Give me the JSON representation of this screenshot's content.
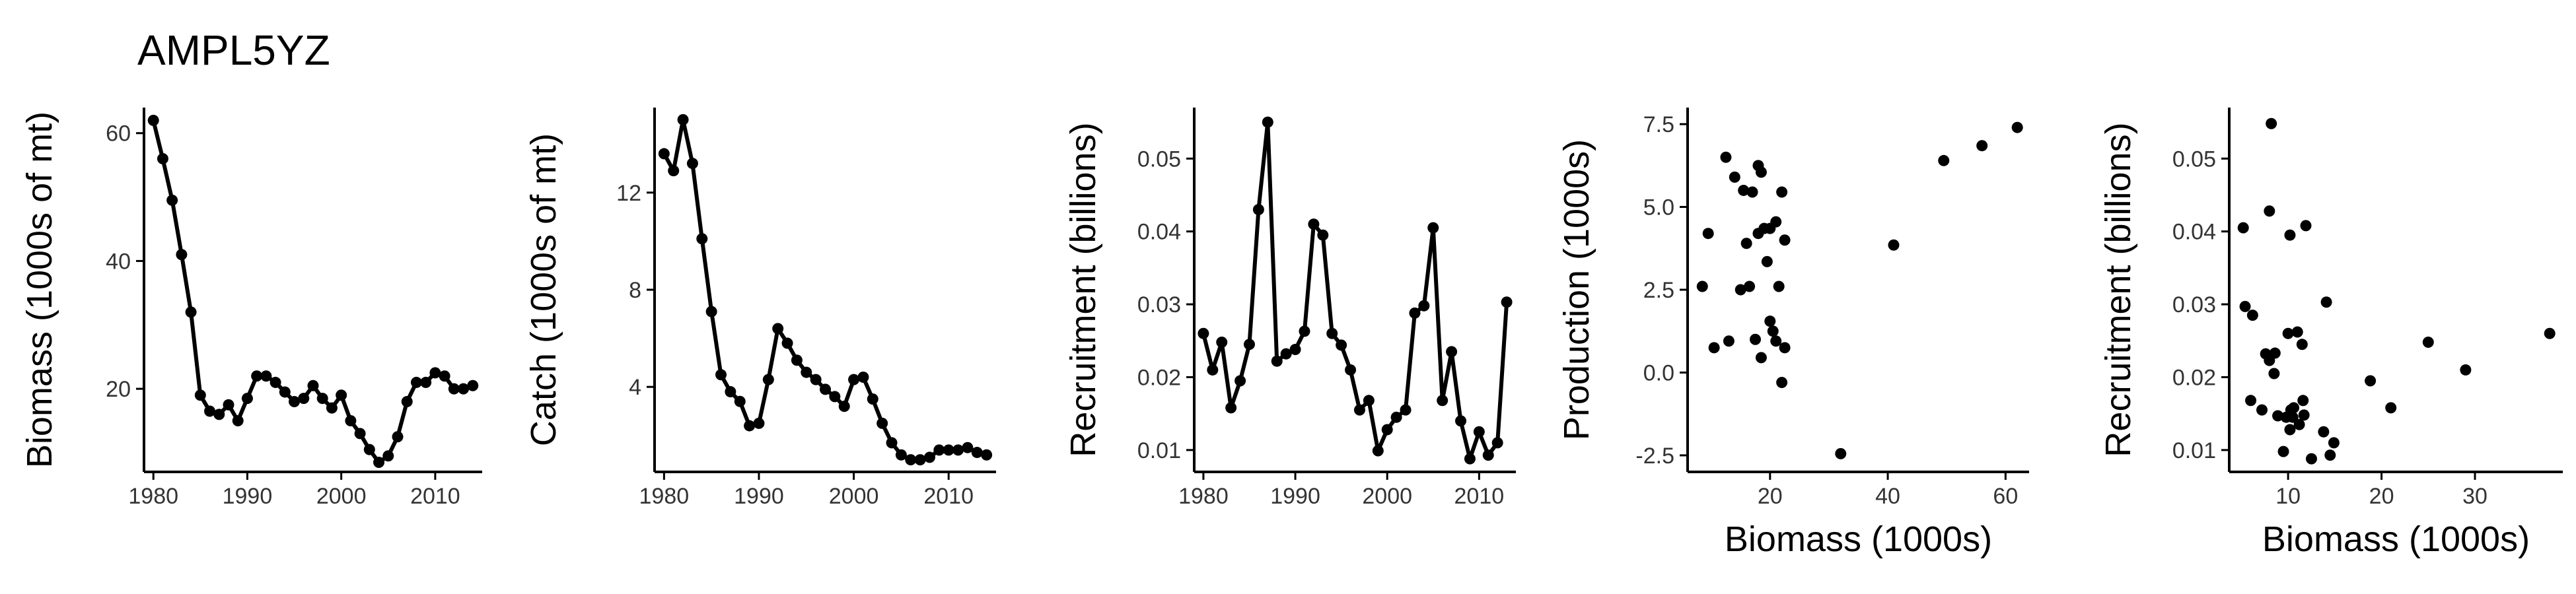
{
  "title": "AMPL5YZ",
  "colors": {
    "ink": "#000000",
    "tick_text": "#333333",
    "background": "#ffffff"
  },
  "chart_data": [
    {
      "type": "line",
      "xlabel": "",
      "ylabel": "Biomass (1000s of mt)",
      "xlim": [
        1979,
        2015
      ],
      "ylim": [
        7,
        64
      ],
      "xticks": [
        1980,
        1990,
        2000,
        2010
      ],
      "yticks": [
        20,
        40,
        60
      ],
      "grid": false,
      "x": [
        1980,
        1981,
        1982,
        1983,
        1984,
        1985,
        1986,
        1987,
        1988,
        1989,
        1990,
        1991,
        1992,
        1993,
        1994,
        1995,
        1996,
        1997,
        1998,
        1999,
        2000,
        2001,
        2002,
        2003,
        2004,
        2005,
        2006,
        2007,
        2008,
        2009,
        2010,
        2011,
        2012,
        2013,
        2014
      ],
      "y": [
        62,
        56,
        49.5,
        41,
        32,
        19,
        16.5,
        16,
        17.5,
        15,
        18.5,
        22,
        22,
        21,
        19.5,
        18,
        18.5,
        20.5,
        18.5,
        17,
        19,
        15,
        13,
        10.5,
        8.5,
        9.5,
        12.5,
        18,
        21,
        21,
        22.5,
        22,
        20,
        20,
        20.5
      ]
    },
    {
      "type": "line",
      "xlabel": "",
      "ylabel": "Catch (1000s of mt)",
      "xlim": [
        1979,
        2015
      ],
      "ylim": [
        0.5,
        15.5
      ],
      "xticks": [
        1980,
        1990,
        2000,
        2010
      ],
      "yticks": [
        4,
        8,
        12
      ],
      "grid": false,
      "x": [
        1980,
        1981,
        1982,
        1983,
        1984,
        1985,
        1986,
        1987,
        1988,
        1989,
        1990,
        1991,
        1992,
        1993,
        1994,
        1995,
        1996,
        1997,
        1998,
        1999,
        2000,
        2001,
        2002,
        2003,
        2004,
        2005,
        2006,
        2007,
        2008,
        2009,
        2010,
        2011,
        2012,
        2013,
        2014
      ],
      "y": [
        13.6,
        12.9,
        15,
        13.2,
        10.1,
        7.1,
        4.5,
        3.8,
        3.4,
        2.4,
        2.5,
        4.3,
        6.4,
        5.8,
        5.1,
        4.6,
        4.3,
        3.9,
        3.6,
        3.2,
        4.3,
        4.4,
        3.5,
        2.5,
        1.7,
        1.2,
        1,
        1,
        1.1,
        1.4,
        1.4,
        1.4,
        1.5,
        1.3,
        1.2
      ]
    },
    {
      "type": "line",
      "xlabel": "",
      "ylabel": "Recruitment (billions)",
      "xlim": [
        1979,
        2014
      ],
      "ylim": [
        0.007,
        0.057
      ],
      "xticks": [
        1980,
        1990,
        2000,
        2010
      ],
      "yticks": [
        0.01,
        0.02,
        0.03,
        0.04,
        0.05
      ],
      "grid": false,
      "x": [
        1980,
        1981,
        1982,
        1983,
        1984,
        1985,
        1986,
        1987,
        1988,
        1989,
        1990,
        1991,
        1992,
        1993,
        1994,
        1995,
        1996,
        1997,
        1998,
        1999,
        2000,
        2001,
        2002,
        2003,
        2004,
        2005,
        2006,
        2007,
        2008,
        2009,
        2010,
        2011,
        2012,
        2013
      ],
      "y": [
        0.026,
        0.021,
        0.0248,
        0.0158,
        0.0195,
        0.0245,
        0.043,
        0.055,
        0.0222,
        0.0232,
        0.0238,
        0.0263,
        0.041,
        0.0395,
        0.026,
        0.0244,
        0.021,
        0.0155,
        0.0168,
        0.0099,
        0.0128,
        0.0145,
        0.0155,
        0.0288,
        0.0298,
        0.0405,
        0.0168,
        0.0235,
        0.014,
        0.0088,
        0.0125,
        0.0093,
        0.011,
        0.0303
      ]
    },
    {
      "type": "scatter",
      "xlabel": "Biomass (1000s)",
      "ylabel": "Production (1000s)",
      "xlim": [
        6,
        64
      ],
      "ylim": [
        -3,
        8
      ],
      "xticks": [
        20,
        40,
        60
      ],
      "yticks": [
        -2.5,
        0.0,
        2.5,
        5.0,
        7.5
      ],
      "ytick_labels": [
        "-2.5",
        "0.0",
        "2.5",
        "5.0",
        "7.5"
      ],
      "grid": false,
      "x": [
        8.5,
        9.5,
        10.5,
        12.5,
        13,
        14,
        15,
        15.5,
        16,
        16.5,
        17,
        17.5,
        18,
        18,
        18.5,
        18.5,
        19,
        19.5,
        20,
        20,
        20.5,
        21,
        21,
        21.5,
        22,
        22,
        22.5,
        22.5,
        32,
        41,
        49.5,
        56,
        62
      ],
      "y": [
        2.6,
        4.2,
        0.75,
        6.5,
        0.95,
        5.9,
        2.5,
        5.5,
        3.9,
        2.6,
        5.45,
        1.0,
        4.2,
        6.25,
        0.45,
        6.05,
        4.35,
        3.35,
        1.55,
        4.35,
        1.25,
        4.55,
        0.95,
        2.6,
        5.45,
        -0.3,
        4.0,
        0.75,
        -2.45,
        3.85,
        6.4,
        6.85,
        7.4
      ]
    },
    {
      "type": "scatter",
      "xlabel": "Biomass (1000s)",
      "ylabel": "Recruitment (billions)",
      "xlim": [
        3.7,
        39.4
      ],
      "ylim": [
        0.007,
        0.057
      ],
      "xticks": [
        10,
        20,
        30
      ],
      "yticks": [
        0.01,
        0.02,
        0.03,
        0.04,
        0.05
      ],
      "grid": false,
      "x": [
        5.2,
        5.4,
        6.0,
        6.2,
        7.2,
        7.6,
        8.0,
        8.0,
        8.2,
        8.5,
        8.6,
        8.9,
        9.5,
        9.8,
        10.0,
        10.2,
        10.2,
        10.3,
        10.5,
        10.6,
        11.0,
        11.2,
        11.5,
        11.6,
        11.7,
        11.9,
        12.5,
        13.8,
        14.1,
        14.5,
        14.9,
        18.8,
        21.0,
        25.0,
        29.0,
        38.0
      ],
      "y": [
        0.0405,
        0.0297,
        0.0168,
        0.0285,
        0.0155,
        0.0232,
        0.0223,
        0.0428,
        0.0548,
        0.0205,
        0.0233,
        0.0147,
        0.0098,
        0.0145,
        0.026,
        0.0128,
        0.0395,
        0.0155,
        0.0145,
        0.0158,
        0.0262,
        0.0135,
        0.0245,
        0.0168,
        0.0148,
        0.0408,
        0.0088,
        0.0125,
        0.0303,
        0.0093,
        0.011,
        0.0195,
        0.0158,
        0.0248,
        0.021,
        0.026
      ]
    }
  ]
}
